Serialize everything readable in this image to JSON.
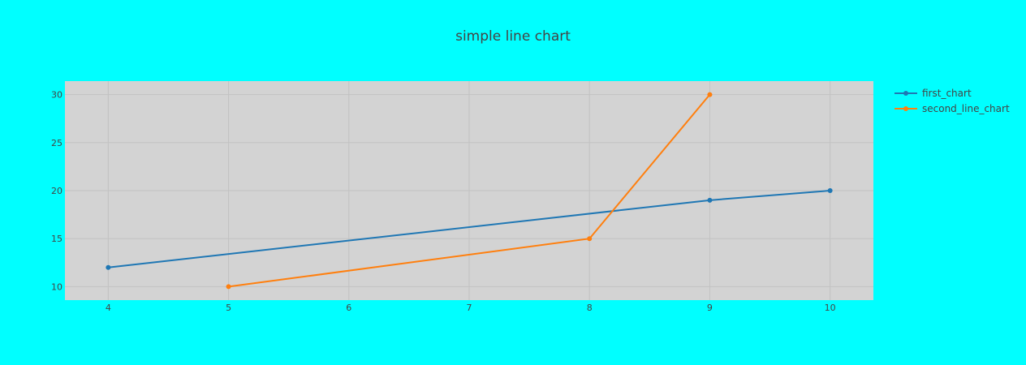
{
  "colors": {
    "page_background": "#00ffff",
    "plot_background": "#d3d3d3",
    "grid": "#c2c2c2"
  },
  "chart_data": {
    "type": "line",
    "title": "simple line chart",
    "xlabel": "",
    "ylabel": "",
    "xlim": [
      3.64,
      10.36
    ],
    "ylim": [
      8.6,
      31.4
    ],
    "xticks": [
      4,
      5,
      6,
      7,
      8,
      9,
      10
    ],
    "yticks": [
      10,
      15,
      20,
      25,
      30
    ],
    "grid": true,
    "legend_position": "top-right, outside plot",
    "series": [
      {
        "name": "first_chart",
        "color": "#1f77b4",
        "x": [
          4,
          9,
          10
        ],
        "y": [
          12,
          19,
          20
        ]
      },
      {
        "name": "second_line_chart",
        "color": "#ff7f0e",
        "x": [
          5,
          8,
          9
        ],
        "y": [
          10,
          15,
          30
        ]
      }
    ]
  }
}
